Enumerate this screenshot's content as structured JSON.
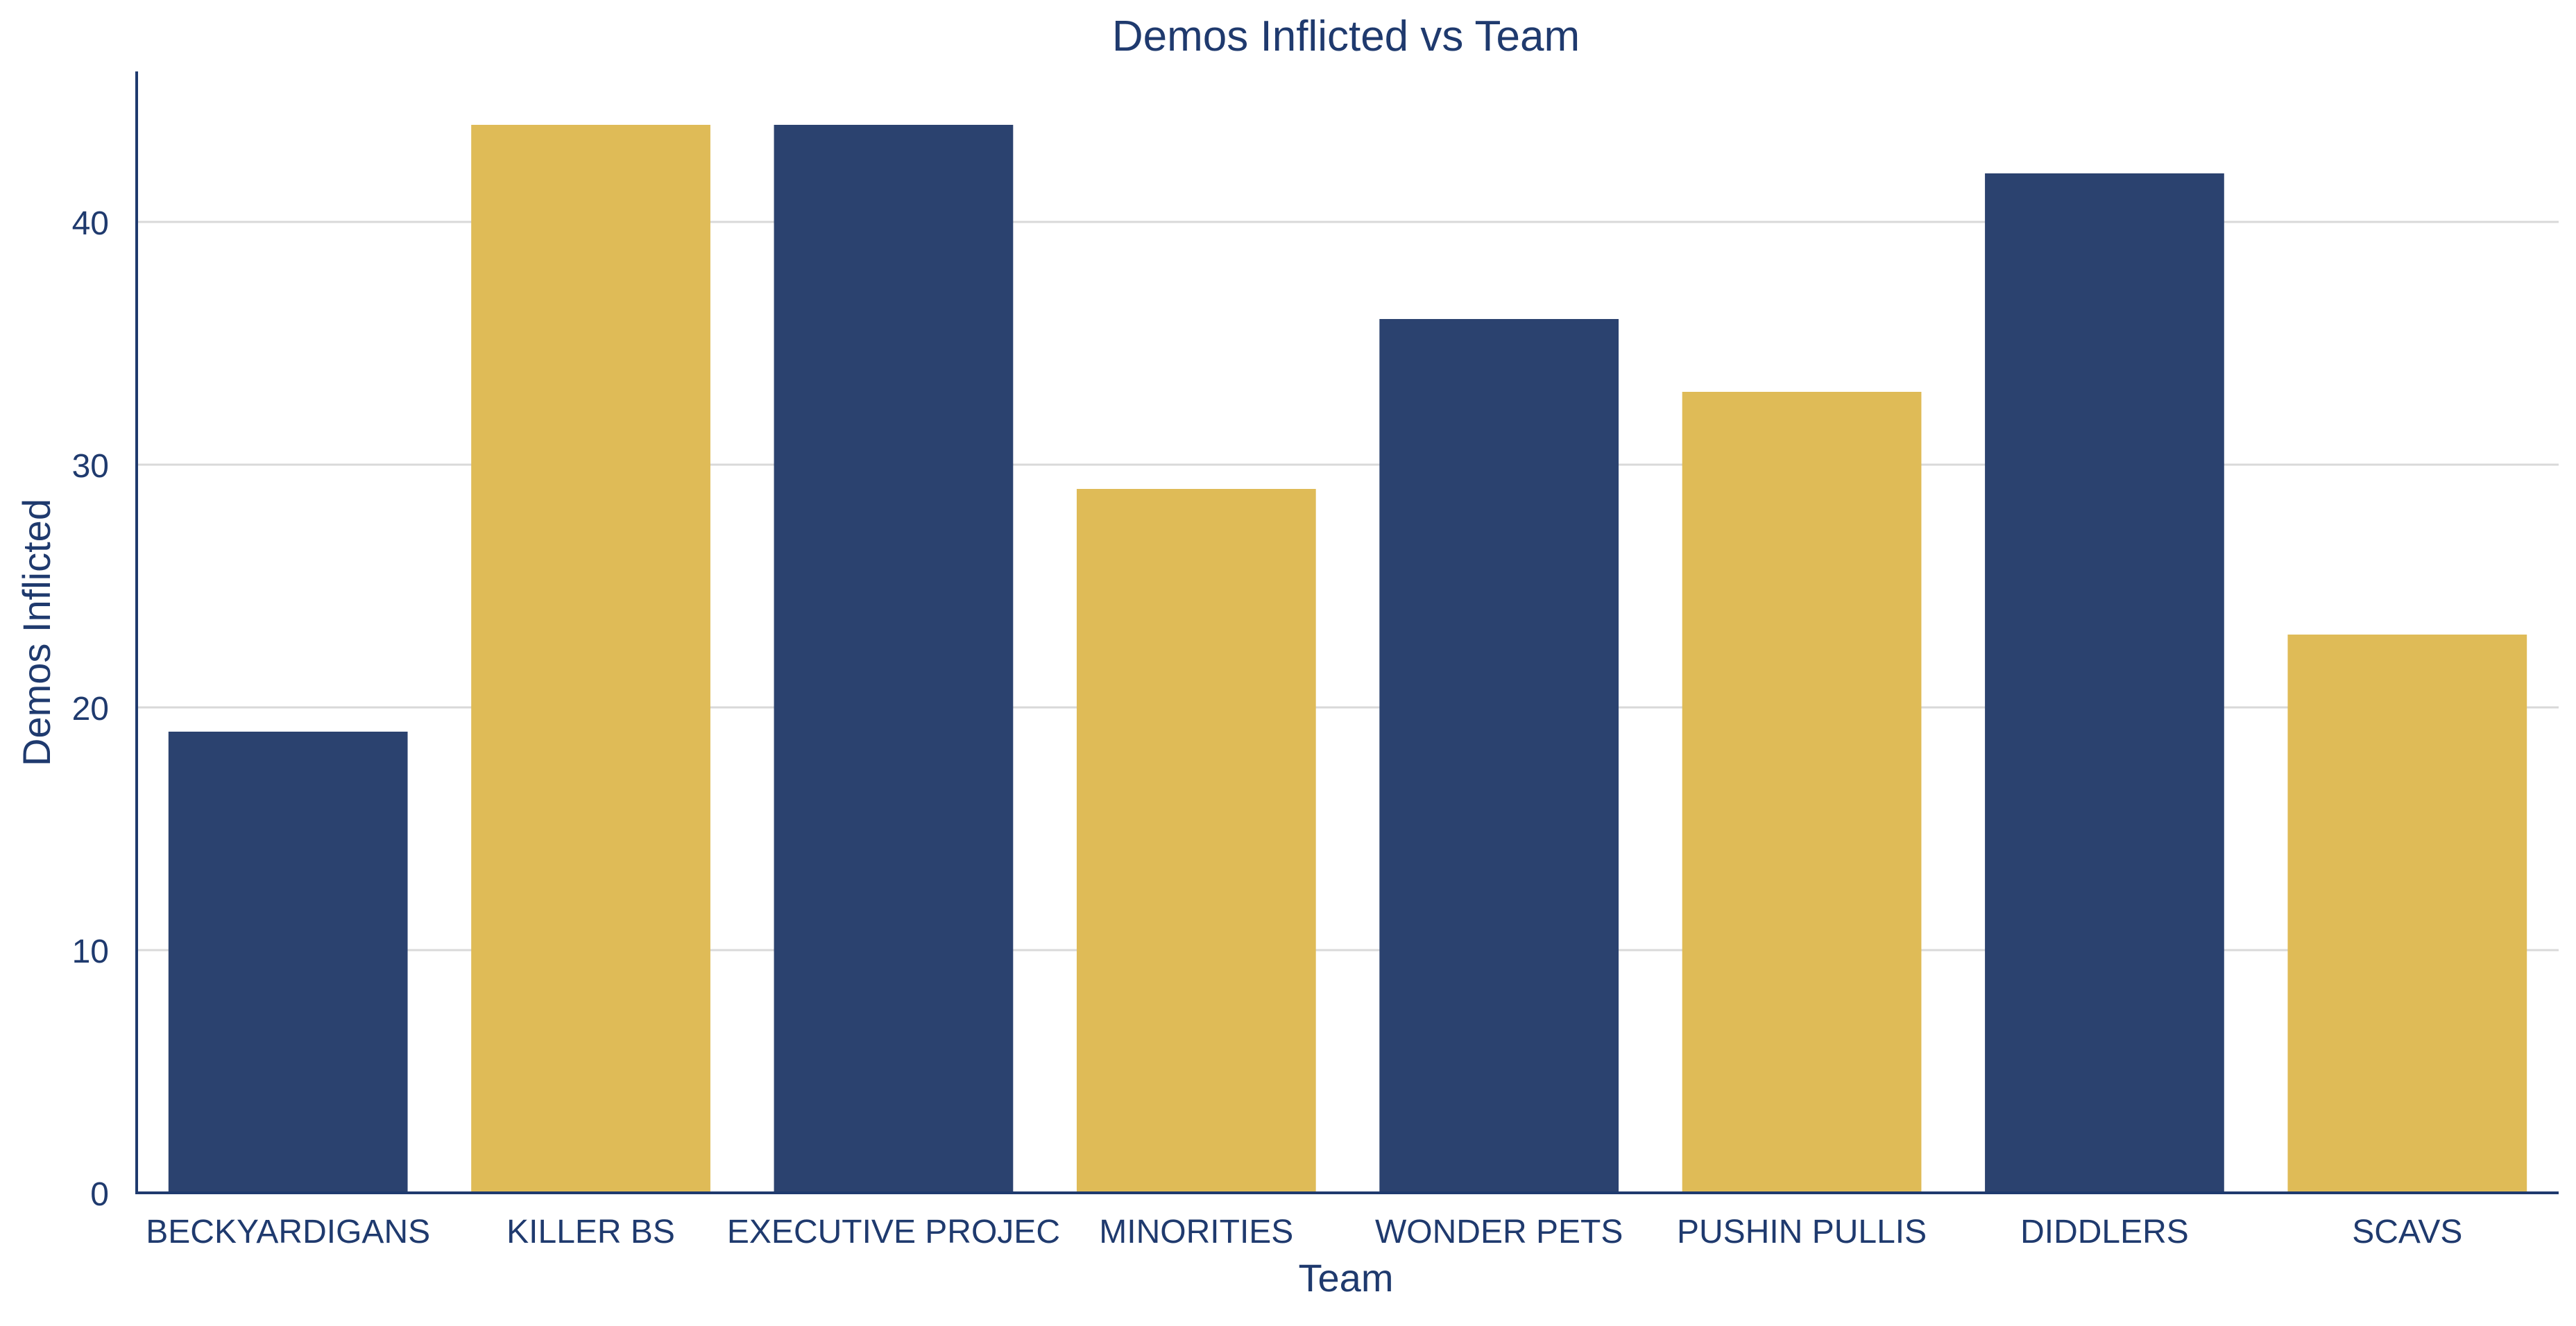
{
  "chart_data": {
    "type": "bar",
    "title": "Demos Inflicted vs Team",
    "xlabel": "Team",
    "ylabel": "Demos Inflicted",
    "categories": [
      "BECKYARDIGANS",
      "KILLER BS",
      "EXECUTIVE PROJEC",
      "MINORITIES",
      "WONDER PETS",
      "PUSHIN PULLIS",
      "DIDDLERS",
      "SCAVS"
    ],
    "values": [
      19,
      44,
      44,
      29,
      36,
      33,
      42,
      23
    ],
    "bar_colors": [
      "#2b426f",
      "#dfbb57",
      "#2b426f",
      "#dfbb57",
      "#2b426f",
      "#dfbb57",
      "#2b426f",
      "#dfbb57"
    ],
    "ylim": [
      0,
      46.2
    ],
    "yticks": [
      0,
      10,
      20,
      30,
      40
    ],
    "grid": "horizontal",
    "legend": "none",
    "colors": {
      "text": "#1f3a6e",
      "axis": "#1f3a6e",
      "grid": "#d9d9d9"
    }
  }
}
